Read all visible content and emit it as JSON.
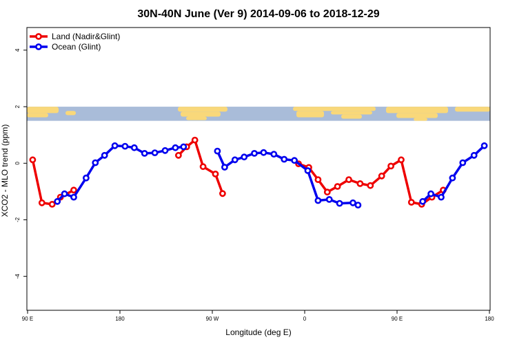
{
  "chart_data": {
    "type": "line",
    "title": "30N-40N June (Ver 9)   2014-09-06 to 2018-12-29",
    "xlabel": "Longitude (deg E)",
    "ylabel": "XCO2 - MLO trend (ppm)",
    "xlim": [
      90,
      540
    ],
    "ylim": [
      -5.2,
      4.8
    ],
    "x_ticks": [
      {
        "value": 90,
        "label": "90 E"
      },
      {
        "value": 180,
        "label": "180"
      },
      {
        "value": 270,
        "label": "90 W"
      },
      {
        "value": 360,
        "label": "0"
      },
      {
        "value": 450,
        "label": "90 E"
      },
      {
        "value": 540,
        "label": "180"
      }
    ],
    "y_ticks": [
      {
        "value": -4,
        "label": "-4"
      },
      {
        "value": -2,
        "label": "-2"
      },
      {
        "value": 0,
        "label": "0"
      },
      {
        "value": 2,
        "label": "2"
      },
      {
        "value": 4,
        "label": "4"
      }
    ],
    "grid": false,
    "legend_position": "top-left",
    "map_strip": {
      "y_range": [
        1.5,
        2.0
      ],
      "ocean_color": "#a9bcd9",
      "land_color": "#f9d87a"
    },
    "series": [
      {
        "name": "Land (Nadir&Glint)",
        "color": "#ee0000",
        "segments": [
          [
            [
              95,
              0.12
            ],
            [
              104,
              -1.4
            ],
            [
              114,
              -1.45
            ],
            [
              122,
              -1.2
            ],
            [
              135,
              -0.95
            ]
          ],
          [
            [
              237,
              0.28
            ],
            [
              245,
              0.58
            ],
            [
              253,
              0.82
            ],
            [
              261,
              -0.12
            ],
            [
              273,
              -0.38
            ],
            [
              280,
              -1.07
            ]
          ],
          [
            [
              354,
              -0.02
            ],
            [
              364,
              -0.15
            ],
            [
              373,
              -0.58
            ],
            [
              382,
              -1.02
            ],
            [
              392,
              -0.82
            ],
            [
              403,
              -0.58
            ],
            [
              414,
              -0.72
            ],
            [
              424,
              -0.79
            ],
            [
              435,
              -0.45
            ],
            [
              444,
              -0.1
            ],
            [
              454,
              0.12
            ],
            [
              464,
              -1.38
            ],
            [
              474,
              -1.45
            ],
            [
              484,
              -1.2
            ],
            [
              495,
              -0.95
            ]
          ]
        ]
      },
      {
        "name": "Ocean (Glint)",
        "color": "#0000ee",
        "segments": [
          [
            [
              119,
              -1.35
            ],
            [
              126,
              -1.08
            ],
            [
              135,
              -1.2
            ],
            [
              147,
              -0.52
            ],
            [
              156,
              0.02
            ],
            [
              165,
              0.28
            ],
            [
              175,
              0.62
            ],
            [
              185,
              0.6
            ],
            [
              194,
              0.55
            ],
            [
              204,
              0.35
            ],
            [
              214,
              0.37
            ],
            [
              224,
              0.45
            ],
            [
              234,
              0.55
            ],
            [
              242,
              0.58
            ]
          ],
          [
            [
              275,
              0.43
            ],
            [
              282,
              -0.14
            ],
            [
              292,
              0.12
            ],
            [
              301,
              0.22
            ],
            [
              311,
              0.35
            ],
            [
              320,
              0.38
            ],
            [
              330,
              0.32
            ],
            [
              340,
              0.14
            ],
            [
              350,
              0.1
            ],
            [
              363,
              -0.26
            ],
            [
              373,
              -1.32
            ],
            [
              384,
              -1.28
            ],
            [
              394,
              -1.42
            ],
            [
              407,
              -1.4
            ],
            [
              412,
              -1.48
            ]
          ],
          [
            [
              475,
              -1.35
            ],
            [
              483,
              -1.08
            ],
            [
              493,
              -1.2
            ],
            [
              504,
              -0.52
            ],
            [
              514,
              0.02
            ],
            [
              525,
              0.28
            ],
            [
              535,
              0.62
            ]
          ]
        ]
      }
    ]
  }
}
